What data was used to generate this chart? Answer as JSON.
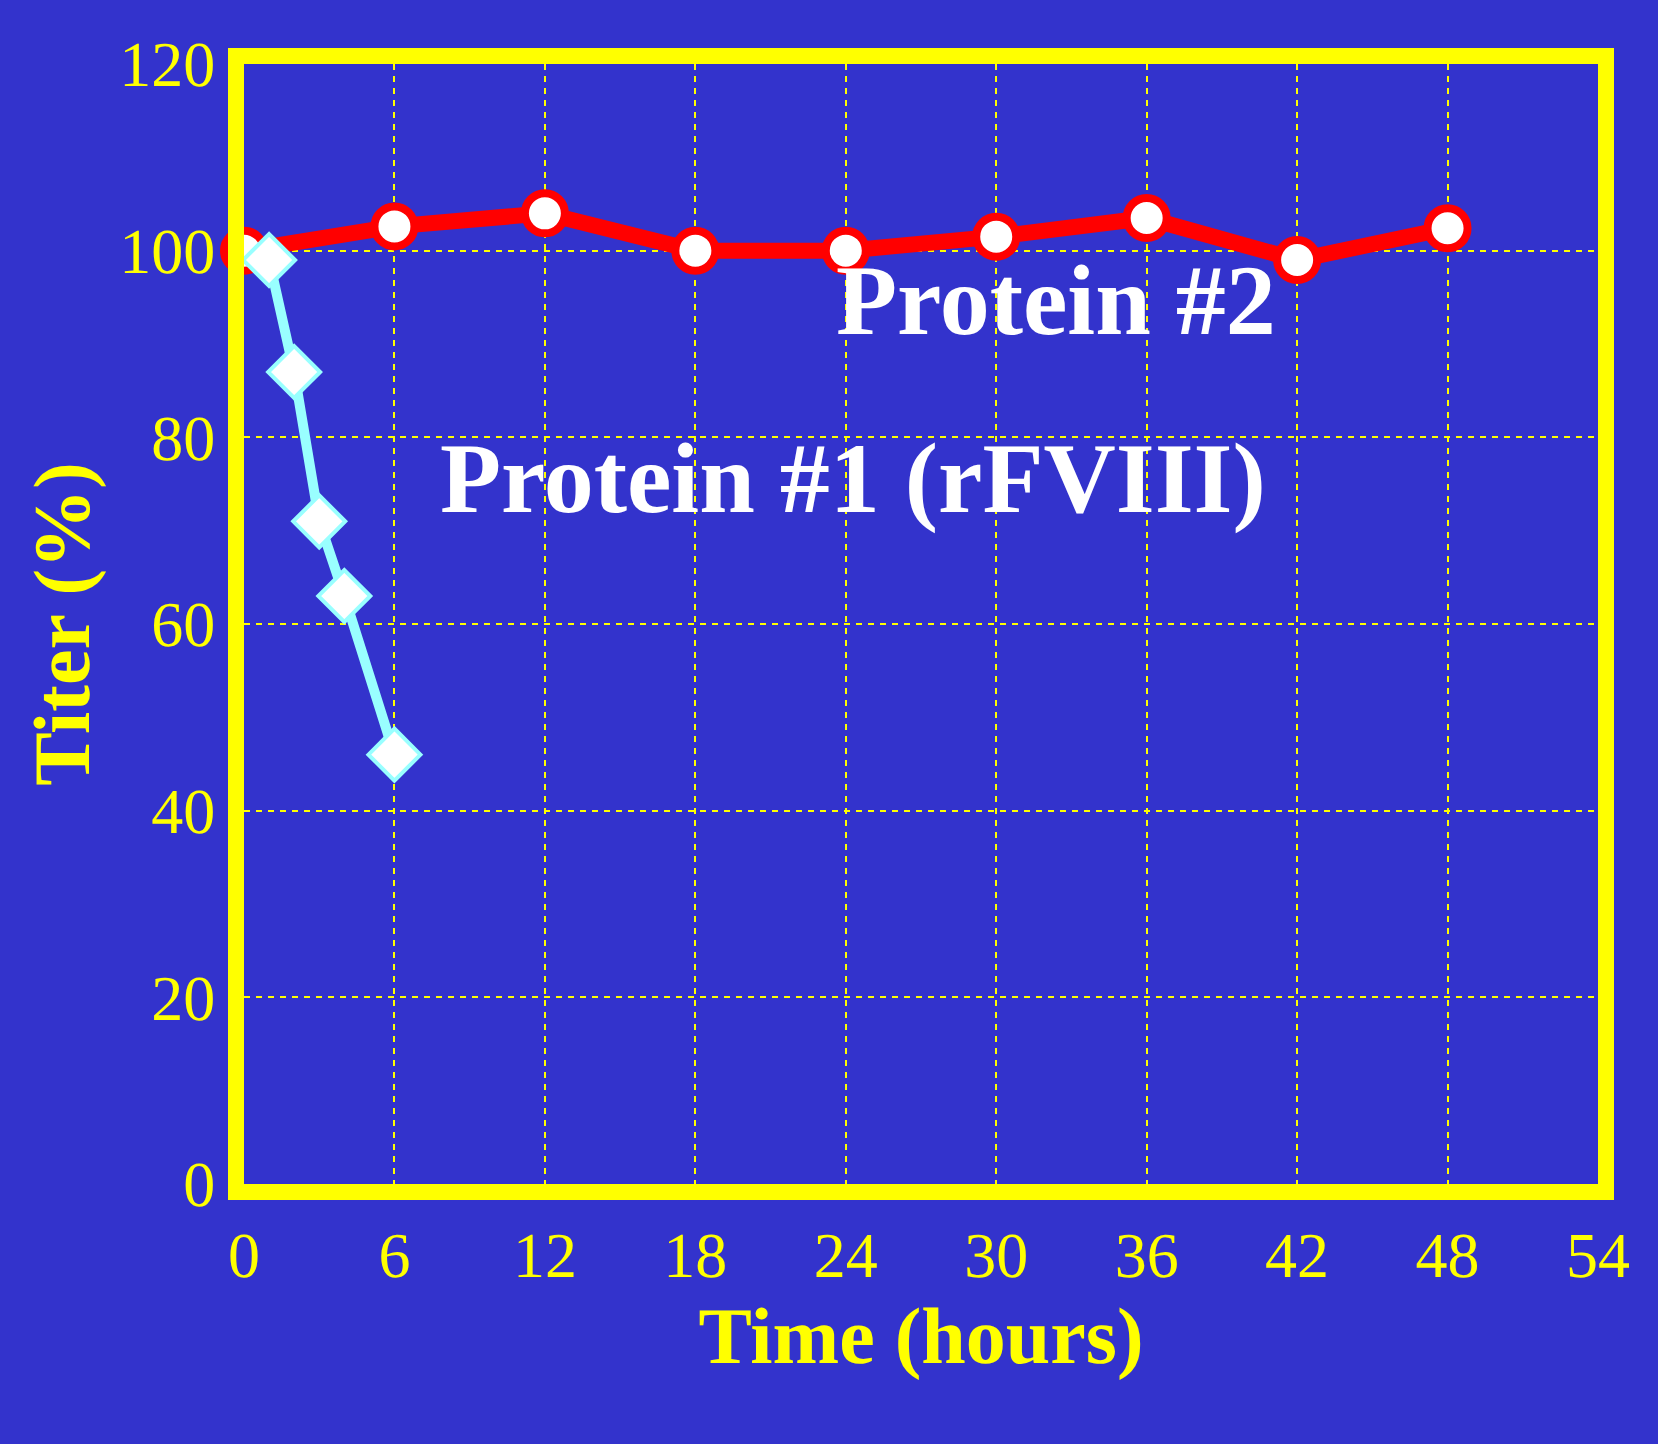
{
  "chart_data": {
    "type": "line",
    "xlabel": "Time (hours)",
    "ylabel": "Titer (%)",
    "xlim": [
      0,
      54
    ],
    "xticks": [
      0,
      6,
      12,
      18,
      24,
      30,
      36,
      42,
      48,
      54
    ],
    "ylim": [
      0,
      120
    ],
    "yticks": [
      0,
      20,
      40,
      60,
      80,
      100,
      120
    ],
    "grid": true,
    "legend": false,
    "series": [
      {
        "name": "Protein #2",
        "color": "#ff0000",
        "marker": "circle",
        "x": [
          0,
          6,
          12,
          18,
          24,
          30,
          36,
          42,
          48
        ],
        "values": [
          100,
          102.6,
          104,
          100,
          100,
          101.5,
          103.5,
          99,
          102.4
        ]
      },
      {
        "name": "Protein #1 (rFVIII)",
        "color": "#99ffff",
        "marker": "diamond",
        "x": [
          1,
          2,
          3,
          4,
          6
        ],
        "values": [
          99,
          87,
          71,
          63,
          46
        ]
      }
    ]
  }
}
